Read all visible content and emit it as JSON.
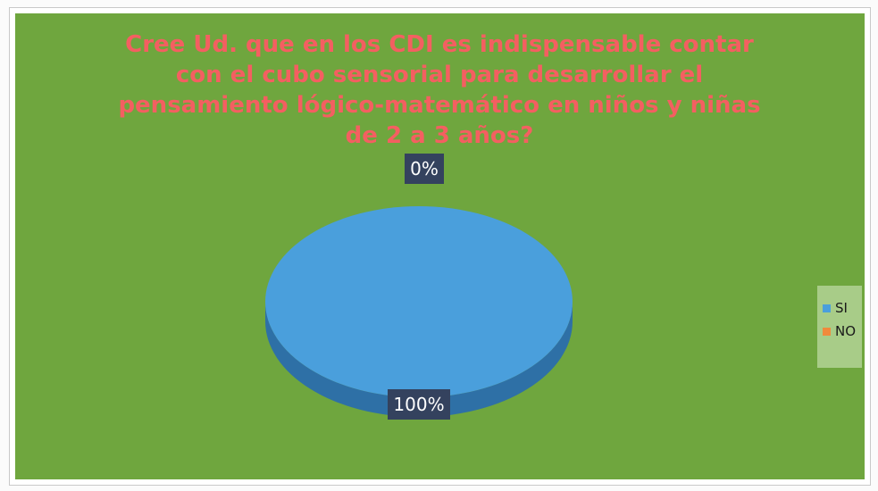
{
  "chart_data": {
    "type": "pie",
    "title": "Cree Ud. que en los CDI es indispensable contar con el cubo sensorial para desarrollar el pensamiento lógico-matemático en niños y niñas de 2 a 3 años?",
    "categories": [
      "SI",
      "NO"
    ],
    "values": [
      100,
      0
    ],
    "data_labels": [
      "100%",
      "0%"
    ],
    "colors": [
      "#4a9fdc",
      "#f08a3c"
    ],
    "legend_position": "right",
    "style": "3d-pie"
  },
  "colors": {
    "background": "#6fa63e",
    "title": "#f45f61",
    "legend_background": "#a8cc88",
    "label_background": "#34425e",
    "pie_top": "#4a9fdc",
    "pie_side": "#2e70a6"
  }
}
